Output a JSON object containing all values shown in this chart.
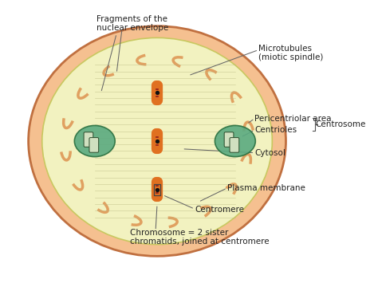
{
  "bg_color": "#ffffff",
  "cell_outer_color": "#f5c090",
  "cell_inner_color": "#f2f2c0",
  "nuclear_envelope_color": "#e0a060",
  "centrosome_color": "#5aaa80",
  "chromosome_orange": "#e07020",
  "chromosome_dark": "#8b1a1a",
  "spindle_color": "#c0c090",
  "label_color": "#222222",
  "label_fs": 7.5,
  "frag_label": "Fragments of the\nnuclear envelope",
  "micro_label": "Microtubules\n(miotic spindle)",
  "peri_label": "Pericentriolar area",
  "cent_label": "Centrioles",
  "centrosome_label": "Centrosome",
  "cytosol_label": "Cytosol",
  "plasma_label": "Plasma membrane",
  "centromere_label": "Centromere",
  "chromo_label": "Chromosome = 2 sister\nchromatids, joined at centromere"
}
